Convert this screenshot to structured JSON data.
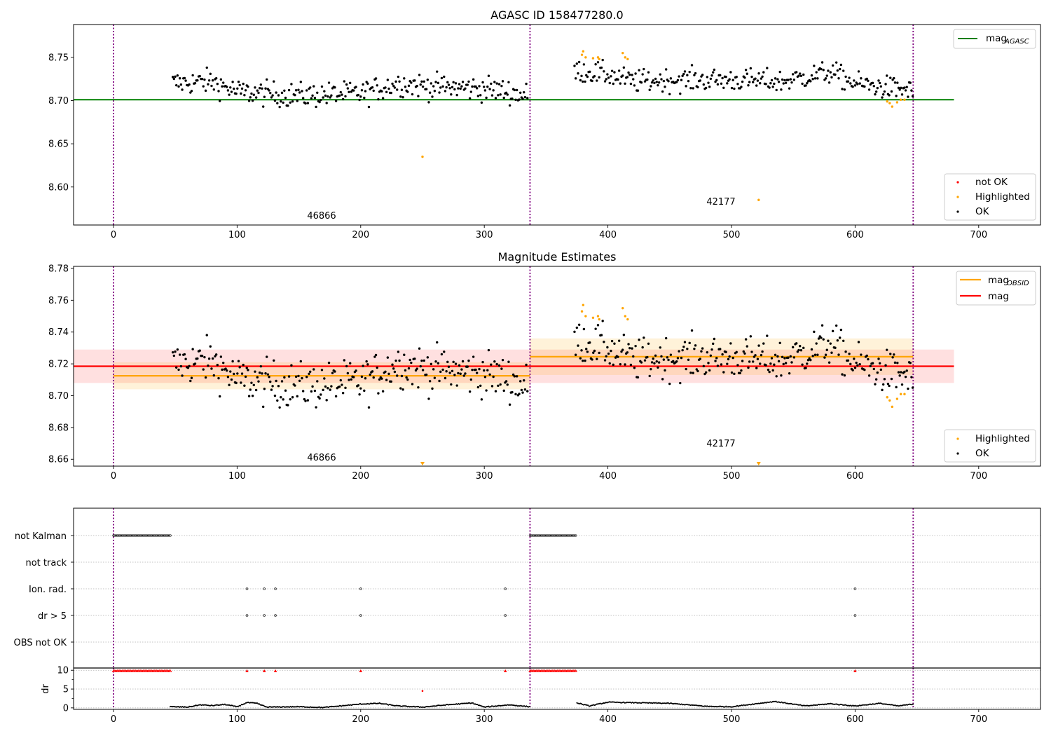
{
  "chart_data": [
    {
      "id": "top",
      "type": "scatter",
      "title": "AGASC ID 158477280.0",
      "xlabel": "",
      "ylabel": "",
      "xlim": [
        -32.3,
        750
      ],
      "ylim": [
        8.556,
        8.788
      ],
      "xticks": [
        0,
        100,
        200,
        300,
        400,
        500,
        600,
        700
      ],
      "yticks": [
        8.6,
        8.65,
        8.7,
        8.75
      ],
      "ytick_labels": [
        "8.60",
        "8.65",
        "8.70",
        "8.75"
      ],
      "grid": false,
      "obsid_boundaries": [
        0,
        337,
        647
      ],
      "hlines": [
        {
          "name": "mag_AGASC",
          "y": 8.701,
          "x": [
            -32.3,
            680
          ],
          "color": "#008000"
        }
      ],
      "annotations": [
        {
          "text": "46866",
          "x": 168,
          "y": 8.564
        },
        {
          "text": "42177",
          "x": 504,
          "y": 8.58
        }
      ],
      "legends": [
        {
          "position": "top-right",
          "entries": [
            {
              "label": "mag",
              "sub": "AGASC",
              "kind": "line",
              "color": "#008000"
            }
          ]
        },
        {
          "position": "bottom-right",
          "entries": [
            {
              "label": "not OK",
              "kind": "dot",
              "color": "#ff0000"
            },
            {
              "label": "Highlighted",
              "kind": "dot",
              "color": "#ffa500"
            },
            {
              "label": "OK",
              "kind": "dot",
              "color": "#000000"
            }
          ]
        }
      ],
      "series": [
        {
          "name": "OK",
          "color": "#000000",
          "segments": [
            {
              "x0": 48,
              "x1": 335,
              "center": 8.713,
              "spread": 0.013,
              "trend": [
                [
                  48,
                  8.72
                ],
                [
                  80,
                  8.722
                ],
                [
                  100,
                  8.71
                ],
                [
                  150,
                  8.706
                ],
                [
                  200,
                  8.708
                ],
                [
                  230,
                  8.72
                ],
                [
                  260,
                  8.716
                ],
                [
                  300,
                  8.714
                ],
                [
                  320,
                  8.71
                ],
                [
                  335,
                  8.705
                ]
              ]
            },
            {
              "x0": 373,
              "x1": 647,
              "center": 8.724,
              "spread": 0.012,
              "trend": [
                [
                  373,
                  8.735
                ],
                [
                  400,
                  8.73
                ],
                [
                  420,
                  8.722
                ],
                [
                  450,
                  8.724
                ],
                [
                  500,
                  8.724
                ],
                [
                  540,
                  8.722
                ],
                [
                  580,
                  8.733
                ],
                [
                  600,
                  8.72
                ],
                [
                  625,
                  8.715
                ],
                [
                  647,
                  8.712
                ]
              ]
            }
          ]
        },
        {
          "name": "Highlighted",
          "color": "#ffa500",
          "points": [
            [
              250,
              8.635
            ],
            [
              379,
              8.753
            ],
            [
              380,
              8.757
            ],
            [
              382,
              8.75
            ],
            [
              388,
              8.749
            ],
            [
              392,
              8.75
            ],
            [
              393,
              8.748
            ],
            [
              412,
              8.755
            ],
            [
              414,
              8.75
            ],
            [
              416,
              8.748
            ],
            [
              522,
              8.585
            ],
            [
              626,
              8.699
            ],
            [
              628,
              8.697
            ],
            [
              630,
              8.693
            ],
            [
              634,
              8.698
            ],
            [
              637,
              8.701
            ],
            [
              640,
              8.701
            ]
          ]
        }
      ]
    },
    {
      "id": "middle",
      "type": "scatter",
      "title": "Magnitude Estimates",
      "xlim": [
        -32.3,
        750
      ],
      "ylim": [
        8.6557,
        8.7813
      ],
      "xticks": [
        0,
        100,
        200,
        300,
        400,
        500,
        600,
        700
      ],
      "yticks": [
        8.66,
        8.68,
        8.7,
        8.72,
        8.74,
        8.76,
        8.78
      ],
      "ytick_labels": [
        "8.66",
        "8.68",
        "8.70",
        "8.72",
        "8.74",
        "8.76",
        "8.78"
      ],
      "grid": false,
      "obsid_boundaries": [
        0,
        337,
        647
      ],
      "bands": [
        {
          "name": "mag",
          "color": "#ff0000",
          "alpha": 0.12,
          "x": [
            -32.3,
            680
          ],
          "y": [
            8.708,
            8.729
          ]
        },
        {
          "name": "mag_OBSID 46866",
          "color": "#ffa500",
          "alpha": 0.15,
          "x": [
            0,
            337
          ],
          "y": [
            8.704,
            8.721
          ]
        },
        {
          "name": "mag_OBSID 42177",
          "color": "#ffa500",
          "alpha": 0.15,
          "x": [
            337,
            647
          ],
          "y": [
            8.713,
            8.736
          ]
        }
      ],
      "hlines": [
        {
          "name": "mag",
          "y": 8.7185,
          "x": [
            -32.3,
            680
          ],
          "color": "#ff0000"
        },
        {
          "name": "mag_OBSID 46866",
          "y": 8.7125,
          "x": [
            0,
            337
          ],
          "color": "#ffa500"
        },
        {
          "name": "mag_OBSID 42177",
          "y": 8.7245,
          "x": [
            337,
            647
          ],
          "color": "#ffa500"
        }
      ],
      "annotations": [
        {
          "text": "46866",
          "x": 168,
          "y": 8.6595
        },
        {
          "text": "42177",
          "x": 504,
          "y": 8.669
        }
      ],
      "off_scale_markers": [
        {
          "x": 250,
          "color": "#ffa500"
        },
        {
          "x": 522,
          "color": "#ffa500"
        }
      ],
      "legends": [
        {
          "position": "top-right",
          "entries": [
            {
              "label": "mag",
              "sub": "OBSID",
              "kind": "line",
              "color": "#ffa500"
            },
            {
              "label": "mag",
              "sub": "",
              "kind": "line",
              "color": "#ff0000"
            }
          ]
        },
        {
          "position": "bottom-right",
          "entries": [
            {
              "label": "Highlighted",
              "kind": "dot",
              "color": "#ffa500"
            },
            {
              "label": "OK",
              "kind": "dot",
              "color": "#000000"
            }
          ]
        }
      ]
    },
    {
      "id": "flags",
      "type": "scatter",
      "title": "",
      "xlim": [
        -32.3,
        750
      ],
      "categories": [
        "not Kalman",
        "not track",
        "Ion. rad.",
        "dr > 5",
        "OBS not OK"
      ],
      "grid": true,
      "obsid_boundaries": [
        0,
        337,
        647
      ],
      "flag_points": {
        "not Kalman": {
          "ranges": [
            [
              0,
              46
            ],
            [
              337,
              374
            ]
          ]
        },
        "not track": {
          "ranges": []
        },
        "Ion. rad.": {
          "points": [
            108,
            122,
            131,
            200,
            317,
            600
          ]
        },
        "dr > 5": {
          "points": [
            108,
            122,
            131,
            200,
            317,
            600
          ]
        },
        "OBS not OK": {
          "ranges": []
        }
      }
    },
    {
      "id": "dr",
      "type": "scatter",
      "title": "",
      "ylabel": "dr",
      "xlim": [
        -32.3,
        750
      ],
      "ylim": [
        -0.4,
        10.6
      ],
      "xticks": [
        0,
        100,
        200,
        300,
        400,
        500,
        600,
        700
      ],
      "yticks": [
        0,
        5,
        10
      ],
      "grid": true,
      "obsid_boundaries": [
        0,
        337,
        647
      ],
      "clipped_points": {
        "color": "#ff0000",
        "y": 9.8,
        "ranges": [
          [
            0,
            46
          ],
          [
            337,
            374
          ]
        ],
        "points": [
          108,
          122,
          131,
          200,
          317,
          600
        ],
        "mid_point": [
          250,
          4.5
        ]
      },
      "track": [
        [
          46,
          0.3
        ],
        [
          60,
          0.2
        ],
        [
          70,
          0.8
        ],
        [
          80,
          0.6
        ],
        [
          90,
          0.9
        ],
        [
          100,
          0.3
        ],
        [
          108,
          1.4
        ],
        [
          116,
          1.2
        ],
        [
          124,
          0.2
        ],
        [
          150,
          0.3
        ],
        [
          170,
          0.1
        ],
        [
          190,
          0.7
        ],
        [
          200,
          1.0
        ],
        [
          215,
          1.2
        ],
        [
          230,
          0.5
        ],
        [
          250,
          0.2
        ],
        [
          270,
          0.8
        ],
        [
          290,
          1.3
        ],
        [
          300,
          0.2
        ],
        [
          320,
          0.8
        ],
        [
          337,
          0.3
        ],
        [
          375,
          1.3
        ],
        [
          385,
          0.5
        ],
        [
          400,
          1.5
        ],
        [
          450,
          1.2
        ],
        [
          480,
          0.4
        ],
        [
          500,
          0.3
        ],
        [
          535,
          1.7
        ],
        [
          560,
          0.5
        ],
        [
          580,
          1.1
        ],
        [
          600,
          0.5
        ],
        [
          620,
          1.2
        ],
        [
          635,
          0.5
        ],
        [
          647,
          1.0
        ]
      ]
    }
  ]
}
